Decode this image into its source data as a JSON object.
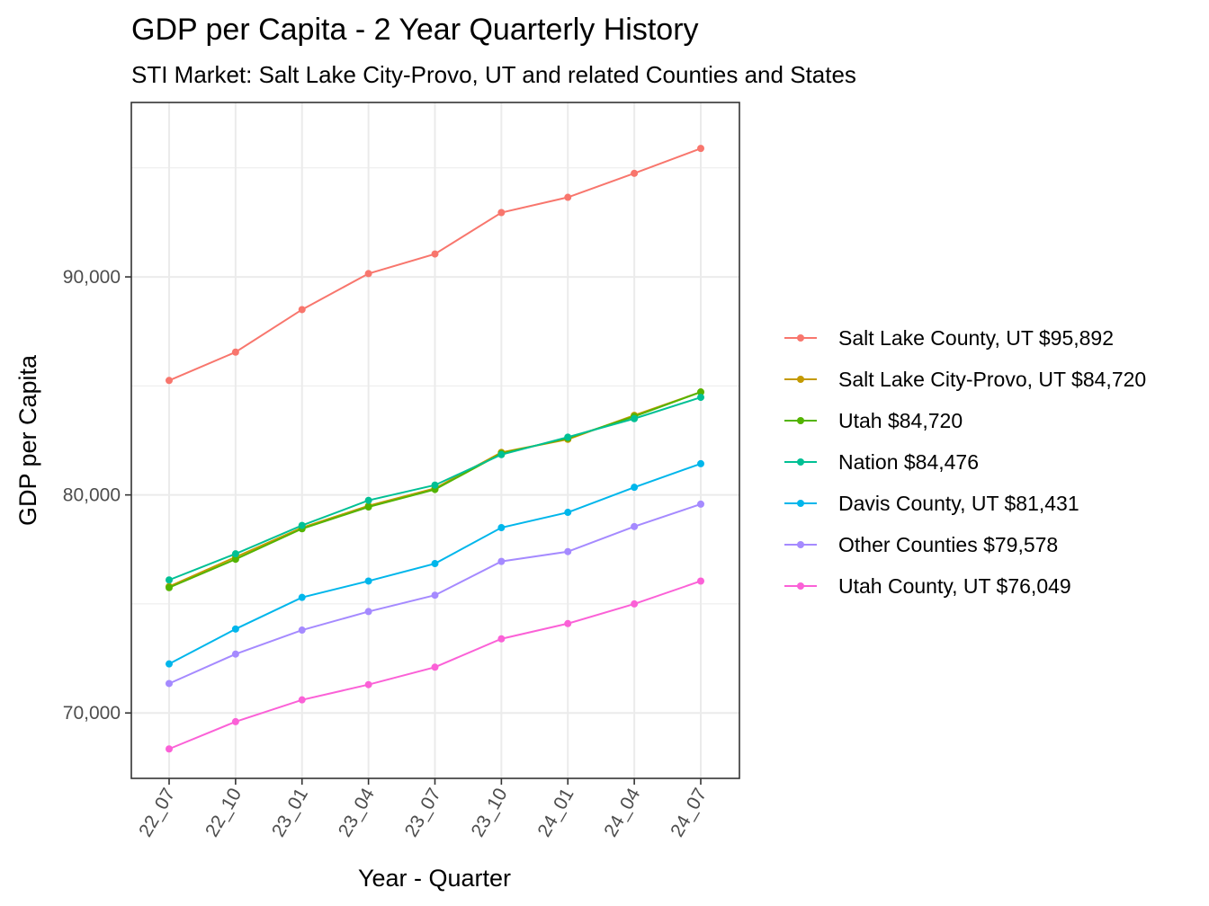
{
  "chart_data": {
    "type": "line",
    "title": "GDP per Capita - 2 Year Quarterly History",
    "subtitle": "STI Market: Salt Lake City-Provo, UT and related Counties and States",
    "xlabel": "Year - Quarter",
    "ylabel": "GDP per Capita",
    "x": [
      "22_07",
      "22_10",
      "23_01",
      "23_04",
      "23_07",
      "23_10",
      "24_01",
      "24_04",
      "24_07"
    ],
    "ylim": [
      67000,
      98000
    ],
    "yticks": [
      70000,
      80000,
      90000
    ],
    "ytick_labels": [
      "70,000",
      "80,000",
      "90,000"
    ],
    "grid": true,
    "legend_position": "right",
    "series": [
      {
        "name": "Salt Lake County, UT $95,892",
        "color": "#F8766D",
        "values": [
          85250,
          86550,
          88500,
          90150,
          91050,
          92950,
          93650,
          94750,
          95892
        ]
      },
      {
        "name": "Salt Lake City-Provo, UT $84,720",
        "color": "#C49A00",
        "values": [
          75800,
          77150,
          78500,
          79500,
          80300,
          81950,
          82550,
          83650,
          84720
        ]
      },
      {
        "name": "Utah $84,720",
        "color": "#53B400",
        "values": [
          75750,
          77050,
          78450,
          79450,
          80250,
          81900,
          82600,
          83600,
          84720
        ]
      },
      {
        "name": "Nation $84,476",
        "color": "#00C094",
        "values": [
          76100,
          77300,
          78600,
          79750,
          80450,
          81850,
          82650,
          83500,
          84476
        ]
      },
      {
        "name": "Davis County, UT $81,431",
        "color": "#00B6EB",
        "values": [
          72250,
          73850,
          75300,
          76050,
          76850,
          78500,
          79200,
          80350,
          81431
        ]
      },
      {
        "name": "Other Counties $79,578",
        "color": "#A58AFF",
        "values": [
          71350,
          72700,
          73800,
          74650,
          75400,
          76950,
          77400,
          78550,
          79578
        ]
      },
      {
        "name": "Utah County, UT $76,049",
        "color": "#FB61D7",
        "values": [
          68350,
          69600,
          70600,
          71300,
          72100,
          73400,
          74100,
          75000,
          76049
        ]
      }
    ]
  }
}
